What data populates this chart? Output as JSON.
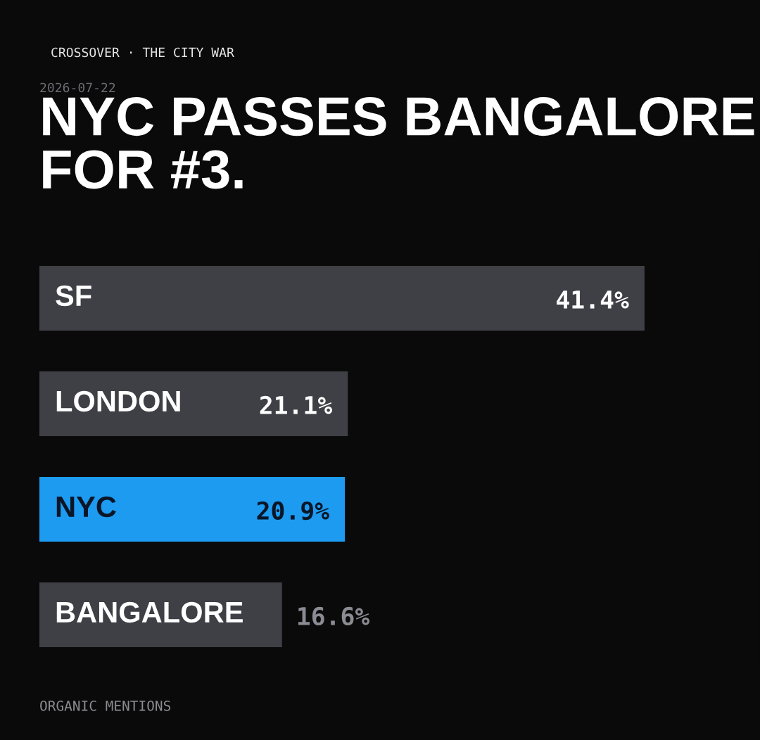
{
  "chart_data": {
    "type": "bar",
    "orientation": "horizontal",
    "title": "NYC PASSES BANGALORE FOR #3.",
    "subtitle": "2026-07-22",
    "annotations": [
      "CROSSOVER · THE CITY WAR",
      "ORGANIC MENTIONS"
    ],
    "categories": [
      "SF",
      "LONDON",
      "NYC",
      "BANGALORE"
    ],
    "values": [
      41.4,
      21.1,
      20.9,
      16.6
    ],
    "value_labels": [
      "41.4%",
      "21.1%",
      "20.9%",
      "16.6%"
    ],
    "colors": [
      "#3f3f46",
      "#3f3f46",
      "#1d9bf0",
      "#3f3f46"
    ],
    "xlim": [
      0,
      49.3
    ]
  }
}
